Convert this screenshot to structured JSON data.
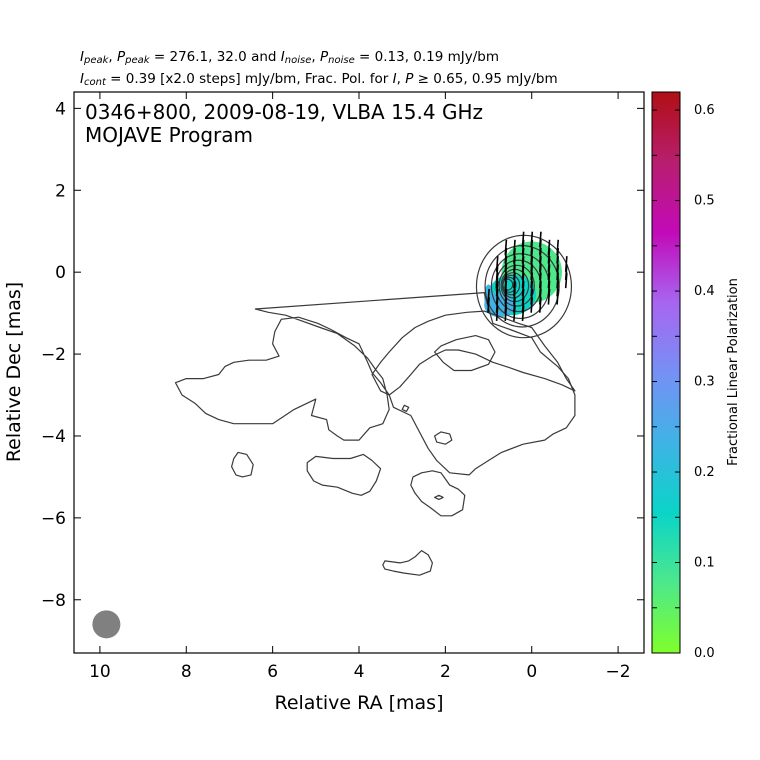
{
  "header": {
    "line1": {
      "i_peak_sym": "I",
      "i_peak_sub": "peak",
      "p_peak_sym": "P",
      "p_peak_sub": "peak",
      "peak_values": "276.1, 32.0",
      "and_word": "and",
      "i_noise_sym": "I",
      "i_noise_sub": "noise",
      "p_noise_sym": "P",
      "p_noise_sub": "noise",
      "noise_values": "0.13, 0.19 mJy/bm"
    },
    "line2": {
      "i_cont_sym": "I",
      "i_cont_sub": "cont",
      "cont_value": "0.39 [x2.0 steps] mJy/bm, Frac. Pol. for",
      "i_sym": "I",
      "p_sym": "P",
      "frac_value": "0.65, 0.95 mJy/bm"
    }
  },
  "chart_data": {
    "type": "contour",
    "title_line1": "0346+800, 2009-08-19, VLBA 15.4 GHz",
    "title_line2": "MOJAVE Program",
    "xlabel": "Relative RA [mas]",
    "ylabel": "Relative Dec [mas]",
    "xlim": [
      10.6,
      -2.6
    ],
    "ylim": [
      -9.3,
      4.4
    ],
    "xticks": [
      10,
      8,
      6,
      4,
      2,
      0,
      -2
    ],
    "yticks": [
      4,
      2,
      0,
      -2,
      -4,
      -6,
      -8
    ],
    "colorbar": {
      "label": "Fractional Linear Polarization",
      "range": [
        0.0,
        0.62
      ],
      "ticks": [
        0.0,
        0.1,
        0.2,
        0.3,
        0.4,
        0.5,
        0.6
      ],
      "colors": [
        "#7fff2a",
        "#4de88c",
        "#0ad4c8",
        "#3fb3e6",
        "#7690f5",
        "#a865f0",
        "#c20ab8",
        "#b81e6e",
        "#b00f14"
      ]
    },
    "core_peak": [
      0.0,
      0.0
    ],
    "beam_center": [
      9.85,
      -8.6
    ],
    "contour_level_base": 0.39,
    "contour_step": 2.0,
    "contour_count": 10,
    "jet_contours": [
      [
        [
          1.1,
          -0.5
        ],
        [
          0.9,
          -1.25
        ],
        [
          0.5,
          -1.4
        ],
        [
          0.0,
          -1.6
        ],
        [
          -0.2,
          -1.95
        ],
        [
          -0.6,
          -2.3
        ],
        [
          -0.85,
          -2.6
        ],
        [
          -1.0,
          -3.0
        ],
        [
          -1.0,
          -3.5
        ],
        [
          -0.8,
          -3.8
        ],
        [
          -0.5,
          -3.95
        ],
        [
          -0.3,
          -4.1
        ],
        [
          0.2,
          -4.2
        ],
        [
          0.7,
          -4.4
        ],
        [
          1.0,
          -4.6
        ],
        [
          1.3,
          -4.8
        ],
        [
          1.45,
          -4.95
        ],
        [
          1.9,
          -4.9
        ],
        [
          2.2,
          -4.6
        ],
        [
          2.4,
          -4.3
        ],
        [
          2.8,
          -3.5
        ],
        [
          3.2,
          -3.3
        ],
        [
          3.3,
          -3.0
        ],
        [
          3.5,
          -2.7
        ],
        [
          3.7,
          -2.45
        ],
        [
          3.8,
          -2.2
        ],
        [
          4.0,
          -1.75
        ],
        [
          4.3,
          -1.6
        ],
        [
          4.65,
          -1.4
        ],
        [
          4.95,
          -1.25
        ],
        [
          5.4,
          -1.1
        ],
        [
          5.8,
          -1.15
        ],
        [
          5.95,
          -1.45
        ],
        [
          6.0,
          -1.75
        ],
        [
          5.85,
          -2.05
        ],
        [
          6.15,
          -2.15
        ],
        [
          6.55,
          -2.15
        ],
        [
          6.9,
          -2.2
        ],
        [
          7.1,
          -2.3
        ],
        [
          7.25,
          -2.5
        ],
        [
          7.6,
          -2.6
        ],
        [
          7.95,
          -2.6
        ],
        [
          8.0,
          -2.6
        ],
        [
          8.25,
          -2.7
        ],
        [
          8.1,
          -3.0
        ],
        [
          7.8,
          -3.2
        ],
        [
          7.55,
          -3.45
        ],
        [
          7.25,
          -3.6
        ],
        [
          6.9,
          -3.7
        ],
        [
          6.55,
          -3.7
        ],
        [
          6.0,
          -3.7
        ],
        [
          5.5,
          -3.35
        ],
        [
          5.0,
          -3.1
        ],
        [
          5.1,
          -3.5
        ],
        [
          4.75,
          -3.6
        ],
        [
          4.7,
          -3.85
        ],
        [
          4.5,
          -4.0
        ],
        [
          4.35,
          -4.1
        ],
        [
          4.0,
          -4.1
        ],
        [
          3.75,
          -3.8
        ],
        [
          3.45,
          -3.7
        ],
        [
          3.3,
          -3.35
        ],
        [
          3.35,
          -3.0
        ],
        [
          3.45,
          -2.6
        ],
        [
          3.6,
          -2.4
        ],
        [
          3.8,
          -2.1
        ],
        [
          4.1,
          -1.8
        ],
        [
          4.5,
          -1.5
        ],
        [
          4.9,
          -1.35
        ],
        [
          5.3,
          -1.2
        ],
        [
          5.7,
          -1.05
        ],
        [
          6.1,
          -0.98
        ],
        [
          6.4,
          -0.9
        ]
      ],
      [
        [
          0.0,
          -1.35
        ],
        [
          -0.3,
          -1.8
        ],
        [
          -0.6,
          -2.2
        ],
        [
          -0.8,
          -2.6
        ],
        [
          -1.0,
          -2.9
        ],
        [
          -0.7,
          -2.75
        ],
        [
          -0.3,
          -2.6
        ],
        [
          0.2,
          -2.45
        ],
        [
          0.6,
          -2.3
        ],
        [
          0.9,
          -2.2
        ],
        [
          1.3,
          -2.0
        ],
        [
          1.7,
          -1.9
        ],
        [
          2.0,
          -1.9
        ],
        [
          2.3,
          -2.05
        ],
        [
          2.6,
          -2.25
        ],
        [
          2.8,
          -2.5
        ],
        [
          3.05,
          -2.8
        ],
        [
          3.3,
          -3.0
        ],
        [
          3.5,
          -2.9
        ],
        [
          3.7,
          -2.5
        ],
        [
          3.5,
          -2.2
        ],
        [
          3.3,
          -1.95
        ],
        [
          3.0,
          -1.6
        ],
        [
          2.7,
          -1.35
        ],
        [
          2.4,
          -1.2
        ],
        [
          2.0,
          -1.05
        ],
        [
          1.5,
          -0.98
        ],
        [
          1.1,
          -0.95
        ],
        [
          0.7,
          -1.1
        ],
        [
          0.3,
          -1.25
        ]
      ],
      [
        [
          2.1,
          -1.8
        ],
        [
          1.75,
          -1.65
        ],
        [
          1.3,
          -1.55
        ],
        [
          1.0,
          -1.65
        ],
        [
          0.85,
          -1.95
        ],
        [
          1.0,
          -2.25
        ],
        [
          1.4,
          -2.4
        ],
        [
          1.8,
          -2.4
        ],
        [
          2.05,
          -2.2
        ],
        [
          2.25,
          -1.95
        ]
      ]
    ],
    "isolated_contours": [
      [
        [
          6.8,
          -4.4
        ],
        [
          6.6,
          -4.45
        ],
        [
          6.45,
          -4.7
        ],
        [
          6.5,
          -4.95
        ],
        [
          6.7,
          -5.0
        ],
        [
          6.85,
          -4.95
        ],
        [
          6.95,
          -4.75
        ],
        [
          6.9,
          -4.55
        ]
      ],
      [
        [
          5.0,
          -4.5
        ],
        [
          4.6,
          -4.55
        ],
        [
          4.2,
          -4.55
        ],
        [
          3.9,
          -4.45
        ],
        [
          3.7,
          -4.6
        ],
        [
          3.5,
          -4.8
        ],
        [
          3.6,
          -5.1
        ],
        [
          3.75,
          -5.35
        ],
        [
          3.95,
          -5.45
        ],
        [
          4.15,
          -5.4
        ],
        [
          4.5,
          -5.25
        ],
        [
          4.85,
          -5.2
        ],
        [
          5.05,
          -5.1
        ],
        [
          5.2,
          -4.85
        ],
        [
          5.2,
          -4.65
        ]
      ],
      [
        [
          2.55,
          -4.9
        ],
        [
          2.3,
          -4.85
        ],
        [
          2.1,
          -4.9
        ],
        [
          2.0,
          -5.05
        ],
        [
          1.9,
          -5.2
        ],
        [
          1.7,
          -5.3
        ],
        [
          1.55,
          -5.45
        ],
        [
          1.6,
          -5.8
        ],
        [
          1.85,
          -5.95
        ],
        [
          2.1,
          -5.95
        ],
        [
          2.35,
          -5.75
        ],
        [
          2.55,
          -5.6
        ],
        [
          2.7,
          -5.4
        ],
        [
          2.8,
          -5.2
        ],
        [
          2.75,
          -5.0
        ]
      ],
      [
        [
          3.4,
          -7.05
        ],
        [
          3.05,
          -7.1
        ],
        [
          2.85,
          -7.05
        ],
        [
          2.7,
          -6.95
        ],
        [
          2.55,
          -6.8
        ],
        [
          2.4,
          -6.9
        ],
        [
          2.3,
          -7.1
        ],
        [
          2.35,
          -7.3
        ],
        [
          2.6,
          -7.4
        ],
        [
          2.95,
          -7.35
        ],
        [
          3.2,
          -7.3
        ],
        [
          3.4,
          -7.25
        ],
        [
          3.45,
          -7.15
        ]
      ],
      [
        [
          2.1,
          -3.9
        ],
        [
          1.9,
          -3.95
        ],
        [
          1.85,
          -4.1
        ],
        [
          2.0,
          -4.2
        ],
        [
          2.2,
          -4.15
        ],
        [
          2.25,
          -4.0
        ]
      ],
      [
        [
          2.95,
          -3.25
        ],
        [
          2.85,
          -3.3
        ],
        [
          2.9,
          -3.4
        ],
        [
          3.0,
          -3.35
        ]
      ],
      [
        [
          2.15,
          -5.45
        ],
        [
          2.05,
          -5.5
        ],
        [
          2.15,
          -5.55
        ],
        [
          2.25,
          -5.5
        ]
      ]
    ],
    "evpa_deg": 4,
    "evpa_length_mas": 0.38,
    "polarization_patches": [
      {
        "ra": 0.0,
        "dec": 0.0,
        "rx": 0.7,
        "ry": 0.75,
        "frac": 0.1
      },
      {
        "ra": 0.45,
        "dec": -0.55,
        "rx": 0.55,
        "ry": 0.5,
        "frac": 0.19
      },
      {
        "ra": 0.75,
        "dec": -0.8,
        "rx": 0.35,
        "ry": 0.3,
        "frac": 0.23
      },
      {
        "ra": 1.0,
        "dec": -0.6,
        "rx": 0.1,
        "ry": 0.3,
        "frac": 0.27
      }
    ]
  }
}
